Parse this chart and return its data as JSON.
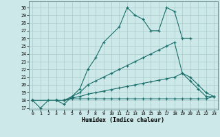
{
  "xlabel": "Humidex (Indice chaleur)",
  "background_color": "#cce8e8",
  "grid_color": "#aacccc",
  "line_color": "#1a6e6a",
  "xlim": [
    -0.5,
    23.5
  ],
  "ylim": [
    16.8,
    30.8
  ],
  "xticks": [
    0,
    1,
    2,
    3,
    4,
    5,
    6,
    7,
    8,
    9,
    10,
    11,
    12,
    13,
    14,
    15,
    16,
    17,
    18,
    19,
    20,
    21,
    22,
    23
  ],
  "yticks": [
    17,
    18,
    19,
    20,
    21,
    22,
    23,
    24,
    25,
    26,
    27,
    28,
    29,
    30
  ],
  "series1_x": [
    0,
    1,
    2,
    3,
    4,
    5,
    6,
    7,
    8,
    9,
    11,
    12,
    13,
    14,
    15,
    16,
    17,
    18,
    19,
    20
  ],
  "series1_y": [
    18.0,
    17.0,
    18.0,
    18.0,
    17.5,
    18.5,
    19.5,
    22.0,
    23.5,
    25.5,
    27.5,
    30.0,
    29.0,
    28.5,
    27.0,
    27.0,
    30.0,
    29.5,
    26.0,
    26.0
  ],
  "series2_x": [
    0,
    3,
    4,
    5,
    6,
    7,
    8,
    9,
    10,
    11,
    12,
    13,
    14,
    15,
    16,
    17,
    18,
    19,
    20,
    21,
    22,
    23
  ],
  "series2_y": [
    18.0,
    18.0,
    18.0,
    18.5,
    19.0,
    20.0,
    20.5,
    21.0,
    21.5,
    22.0,
    22.5,
    23.0,
    23.5,
    24.0,
    24.5,
    25.0,
    25.5,
    21.5,
    20.5,
    19.5,
    18.5,
    18.5
  ],
  "series3_x": [
    0,
    3,
    4,
    5,
    6,
    7,
    8,
    9,
    10,
    11,
    12,
    13,
    14,
    15,
    16,
    17,
    18,
    19,
    20,
    21,
    22,
    23
  ],
  "series3_y": [
    18.0,
    18.0,
    18.0,
    18.3,
    18.5,
    18.8,
    19.0,
    19.2,
    19.4,
    19.6,
    19.8,
    20.0,
    20.2,
    20.4,
    20.6,
    20.8,
    21.0,
    21.5,
    21.0,
    20.0,
    19.0,
    18.5
  ],
  "series4_x": [
    0,
    3,
    4,
    5,
    6,
    7,
    8,
    9,
    10,
    11,
    12,
    13,
    14,
    15,
    16,
    17,
    18,
    19,
    20,
    21,
    22,
    23
  ],
  "series4_y": [
    18.0,
    18.0,
    18.0,
    18.2,
    18.2,
    18.2,
    18.2,
    18.2,
    18.2,
    18.2,
    18.2,
    18.2,
    18.2,
    18.2,
    18.2,
    18.2,
    18.2,
    18.2,
    18.2,
    18.2,
    18.2,
    18.5
  ]
}
